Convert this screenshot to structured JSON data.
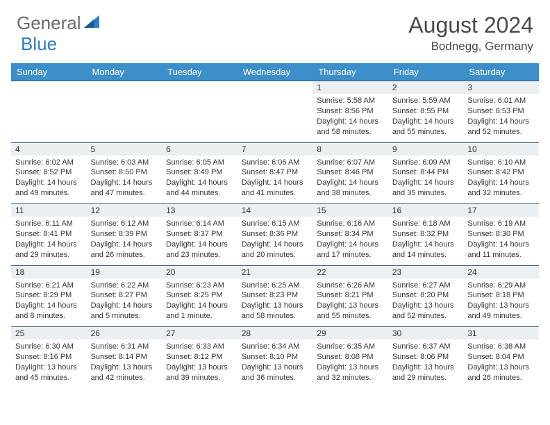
{
  "logo": {
    "text1": "General",
    "text2": "Blue"
  },
  "title": "August 2024",
  "location": "Bodnegg, Germany",
  "colors": {
    "header_bg": "#3d8fc9",
    "header_text": "#ffffff",
    "daynum_bg": "#eceff2",
    "row_border": "#3d5a7a",
    "logo_gray": "#6a6a6a",
    "logo_blue": "#2d7dc4"
  },
  "weekdays": [
    "Sunday",
    "Monday",
    "Tuesday",
    "Wednesday",
    "Thursday",
    "Friday",
    "Saturday"
  ],
  "weeks": [
    [
      null,
      null,
      null,
      null,
      {
        "d": "1",
        "sr": "5:58 AM",
        "ss": "8:56 PM",
        "dl": "14 hours and 58 minutes."
      },
      {
        "d": "2",
        "sr": "5:59 AM",
        "ss": "8:55 PM",
        "dl": "14 hours and 55 minutes."
      },
      {
        "d": "3",
        "sr": "6:01 AM",
        "ss": "8:53 PM",
        "dl": "14 hours and 52 minutes."
      }
    ],
    [
      {
        "d": "4",
        "sr": "6:02 AM",
        "ss": "8:52 PM",
        "dl": "14 hours and 49 minutes."
      },
      {
        "d": "5",
        "sr": "6:03 AM",
        "ss": "8:50 PM",
        "dl": "14 hours and 47 minutes."
      },
      {
        "d": "6",
        "sr": "6:05 AM",
        "ss": "8:49 PM",
        "dl": "14 hours and 44 minutes."
      },
      {
        "d": "7",
        "sr": "6:06 AM",
        "ss": "8:47 PM",
        "dl": "14 hours and 41 minutes."
      },
      {
        "d": "8",
        "sr": "6:07 AM",
        "ss": "8:46 PM",
        "dl": "14 hours and 38 minutes."
      },
      {
        "d": "9",
        "sr": "6:09 AM",
        "ss": "8:44 PM",
        "dl": "14 hours and 35 minutes."
      },
      {
        "d": "10",
        "sr": "6:10 AM",
        "ss": "8:42 PM",
        "dl": "14 hours and 32 minutes."
      }
    ],
    [
      {
        "d": "11",
        "sr": "6:11 AM",
        "ss": "8:41 PM",
        "dl": "14 hours and 29 minutes."
      },
      {
        "d": "12",
        "sr": "6:12 AM",
        "ss": "8:39 PM",
        "dl": "14 hours and 26 minutes."
      },
      {
        "d": "13",
        "sr": "6:14 AM",
        "ss": "8:37 PM",
        "dl": "14 hours and 23 minutes."
      },
      {
        "d": "14",
        "sr": "6:15 AM",
        "ss": "8:36 PM",
        "dl": "14 hours and 20 minutes."
      },
      {
        "d": "15",
        "sr": "6:16 AM",
        "ss": "8:34 PM",
        "dl": "14 hours and 17 minutes."
      },
      {
        "d": "16",
        "sr": "6:18 AM",
        "ss": "8:32 PM",
        "dl": "14 hours and 14 minutes."
      },
      {
        "d": "17",
        "sr": "6:19 AM",
        "ss": "8:30 PM",
        "dl": "14 hours and 11 minutes."
      }
    ],
    [
      {
        "d": "18",
        "sr": "6:21 AM",
        "ss": "8:29 PM",
        "dl": "14 hours and 8 minutes."
      },
      {
        "d": "19",
        "sr": "6:22 AM",
        "ss": "8:27 PM",
        "dl": "14 hours and 5 minutes."
      },
      {
        "d": "20",
        "sr": "6:23 AM",
        "ss": "8:25 PM",
        "dl": "14 hours and 1 minute."
      },
      {
        "d": "21",
        "sr": "6:25 AM",
        "ss": "8:23 PM",
        "dl": "13 hours and 58 minutes."
      },
      {
        "d": "22",
        "sr": "6:26 AM",
        "ss": "8:21 PM",
        "dl": "13 hours and 55 minutes."
      },
      {
        "d": "23",
        "sr": "6:27 AM",
        "ss": "8:20 PM",
        "dl": "13 hours and 52 minutes."
      },
      {
        "d": "24",
        "sr": "6:29 AM",
        "ss": "8:18 PM",
        "dl": "13 hours and 49 minutes."
      }
    ],
    [
      {
        "d": "25",
        "sr": "6:30 AM",
        "ss": "8:16 PM",
        "dl": "13 hours and 45 minutes."
      },
      {
        "d": "26",
        "sr": "6:31 AM",
        "ss": "8:14 PM",
        "dl": "13 hours and 42 minutes."
      },
      {
        "d": "27",
        "sr": "6:33 AM",
        "ss": "8:12 PM",
        "dl": "13 hours and 39 minutes."
      },
      {
        "d": "28",
        "sr": "6:34 AM",
        "ss": "8:10 PM",
        "dl": "13 hours and 36 minutes."
      },
      {
        "d": "29",
        "sr": "6:35 AM",
        "ss": "8:08 PM",
        "dl": "13 hours and 32 minutes."
      },
      {
        "d": "30",
        "sr": "6:37 AM",
        "ss": "8:06 PM",
        "dl": "13 hours and 29 minutes."
      },
      {
        "d": "31",
        "sr": "6:38 AM",
        "ss": "8:04 PM",
        "dl": "13 hours and 26 minutes."
      }
    ]
  ],
  "labels": {
    "sunrise": "Sunrise:",
    "sunset": "Sunset:",
    "daylight": "Daylight:"
  }
}
